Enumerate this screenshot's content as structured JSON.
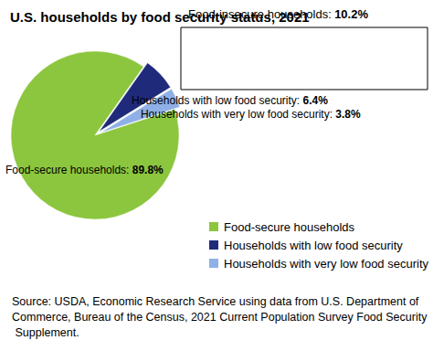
{
  "chart_data": {
    "type": "pie",
    "title": "U.S. households by food security status, 2021",
    "categories": [
      "Food-secure households",
      "Households with low food security",
      "Households with very low food security"
    ],
    "values": [
      89.8,
      6.4,
      3.8
    ],
    "value_labels": [
      "Food-secure households: 89.8%",
      "Households with low food security: 6.4%",
      "Households with very low food security: 3.8%"
    ],
    "colors": [
      "#8cc63e",
      "#1f2a7a",
      "#8fb0e6"
    ],
    "data_labels": true,
    "legend": "bottom right",
    "annotations": [
      {
        "text": "Food-insecure households: 10.2%"
      }
    ],
    "source": "Source: USDA, Economic Research Service using data from U.S. Department of Commerce, Bureau of the Census, 2021 Current Population Survey Food Security Supplement."
  }
}
